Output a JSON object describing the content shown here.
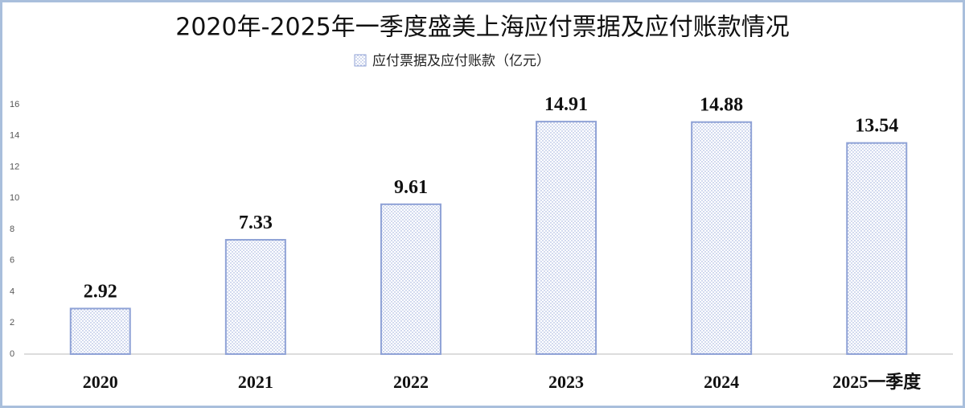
{
  "chart_data": {
    "type": "bar",
    "title": "2020年-2025年一季度盛美上海应付票据及应付账款情况",
    "categories": [
      "2020",
      "2021",
      "2022",
      "2023",
      "2024",
      "2025一季度"
    ],
    "series": [
      {
        "name": "应付票据及应付账款（亿元）",
        "color": "#8fa2d6",
        "values": [
          2.92,
          7.33,
          9.61,
          14.91,
          14.88,
          13.54
        ]
      }
    ],
    "ylim": [
      0,
      16
    ],
    "yticks": [
      0,
      2,
      4,
      6,
      8,
      10,
      12,
      14,
      16
    ],
    "grid": false,
    "legend": "top"
  }
}
